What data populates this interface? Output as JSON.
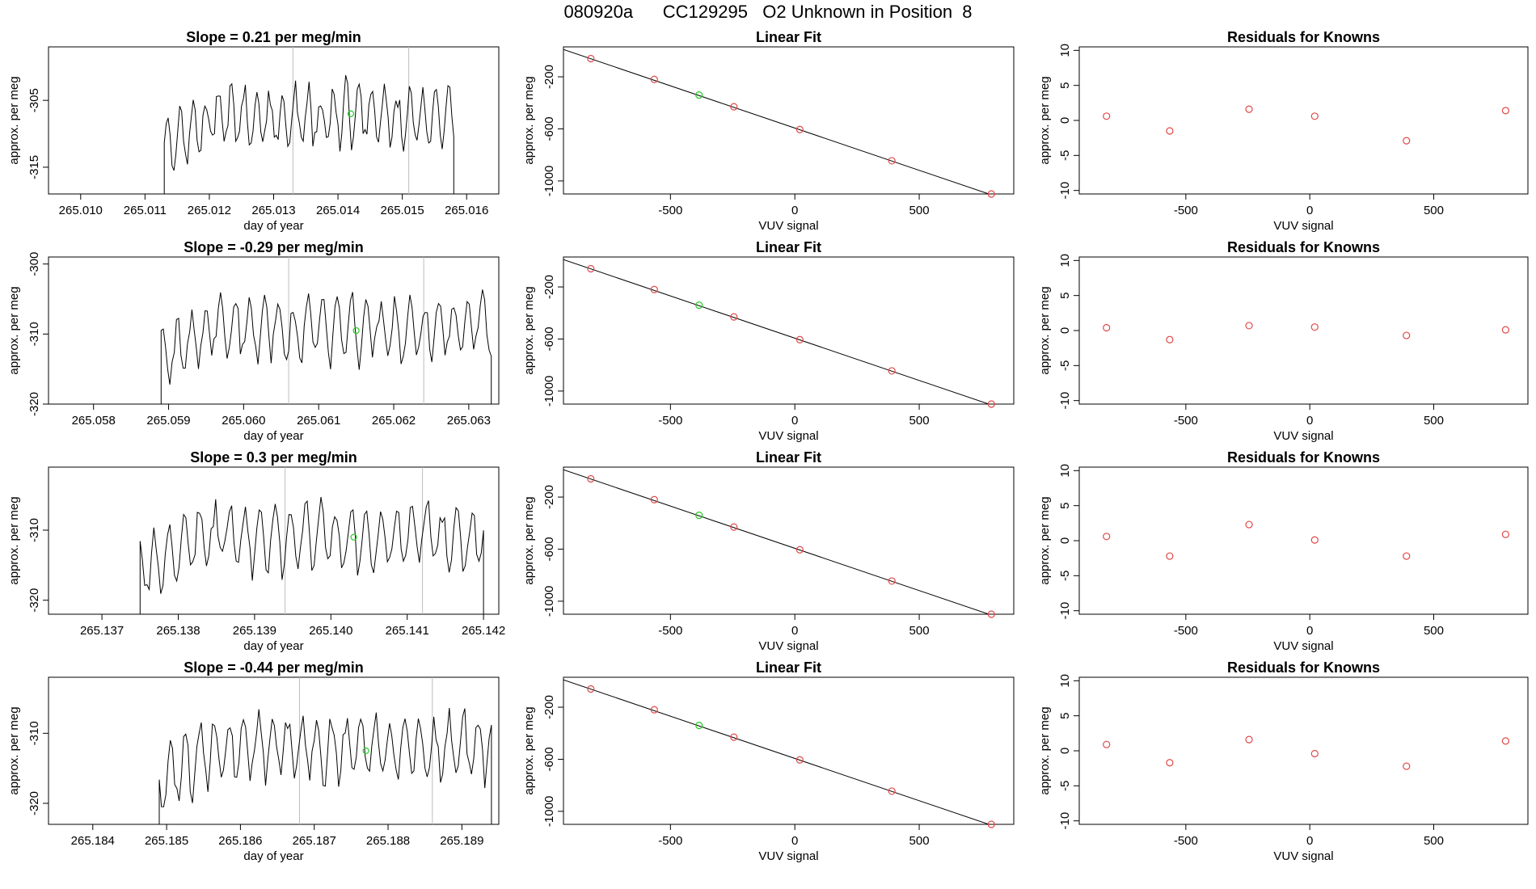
{
  "figure_title": "080920a      CC129295   O2 Unknown in Position  8",
  "chart_data": [
    {
      "row": 0,
      "type": "line",
      "title": "Slope =  0.21  per meg/min",
      "xlabel": "day of year",
      "ylabel": "approx. per meg",
      "xlim": [
        265.0095,
        265.0165
      ],
      "ylim": [
        -319,
        -297
      ],
      "xticks": [
        "265.010",
        "265.011",
        "265.012",
        "265.013",
        "265.014",
        "265.015",
        "265.016"
      ],
      "xtick_values": [
        265.01,
        265.011,
        265.012,
        265.013,
        265.014,
        265.015,
        265.016
      ],
      "yticks": [
        "-305",
        "-315"
      ],
      "ytick_values": [
        -305,
        -315
      ],
      "x_start": 265.0113,
      "x_end": 265.0158,
      "baseline": -319,
      "center": -307.5,
      "amp": 4.5,
      "vlines": [
        265.0133,
        265.0151
      ],
      "green_point": [
        265.0142,
        -307
      ]
    },
    {
      "row": 0,
      "type": "scatter",
      "title": "Linear Fit",
      "xlabel": "VUV signal",
      "ylabel": "approx. per meg",
      "xlim": [
        -930,
        880
      ],
      "ylim": [
        -1100,
        30
      ],
      "xticks": [
        "-500",
        "0",
        "500"
      ],
      "xtick_values": [
        -500,
        0,
        500
      ],
      "yticks": [
        "-200",
        "-600",
        "-1000"
      ],
      "ytick_values": [
        -200,
        -600,
        -1000
      ],
      "points": [
        [
          -820,
          -60
        ],
        [
          -565,
          -220
        ],
        [
          -245,
          -430
        ],
        [
          20,
          -605
        ],
        [
          390,
          -845
        ],
        [
          790,
          -1100
        ]
      ],
      "green_point": [
        -385,
        -340
      ],
      "fit_line": [
        [
          -930,
          10
        ],
        [
          880,
          -1165
        ]
      ]
    },
    {
      "row": 0,
      "type": "scatter",
      "title": "Residuals for Knowns",
      "xlabel": "VUV signal",
      "ylabel": "approx. per meg",
      "xlim": [
        -930,
        880
      ],
      "ylim": [
        -10.5,
        10.5
      ],
      "xticks": [
        "-500",
        "0",
        "500"
      ],
      "xtick_values": [
        -500,
        0,
        500
      ],
      "yticks": [
        "10",
        "5",
        "0",
        "-5",
        "-10"
      ],
      "ytick_values": [
        10,
        5,
        0,
        -5,
        -10
      ],
      "points": [
        [
          -820,
          0.6
        ],
        [
          -565,
          -1.5
        ],
        [
          -245,
          1.6
        ],
        [
          20,
          0.6
        ],
        [
          390,
          -2.9
        ],
        [
          790,
          1.4
        ]
      ]
    },
    {
      "row": 1,
      "type": "line",
      "title": "Slope =  -0.29  per meg/min",
      "xlabel": "day of year",
      "ylabel": "approx. per meg",
      "xlim": [
        265.0574,
        265.0634
      ],
      "ylim": [
        -320,
        -299
      ],
      "xticks": [
        "265.058",
        "265.059",
        "265.060",
        "265.061",
        "265.062",
        "265.063"
      ],
      "xtick_values": [
        265.058,
        265.059,
        265.06,
        265.061,
        265.062,
        265.063
      ],
      "yticks": [
        "-300",
        "-310",
        "-320"
      ],
      "ytick_values": [
        -300,
        -310,
        -320
      ],
      "x_start": 265.0589,
      "x_end": 265.0633,
      "baseline": -320,
      "center": -309,
      "amp": 4.5,
      "vlines": [
        265.0606,
        265.0624
      ],
      "green_point": [
        265.0615,
        -309.5
      ]
    },
    {
      "row": 1,
      "type": "scatter",
      "title": "Linear Fit",
      "xlabel": "VUV signal",
      "ylabel": "approx. per meg",
      "xlim": [
        -930,
        880
      ],
      "ylim": [
        -1100,
        30
      ],
      "xticks": [
        "-500",
        "0",
        "500"
      ],
      "xtick_values": [
        -500,
        0,
        500
      ],
      "yticks": [
        "-200",
        "-600",
        "-1000"
      ],
      "ytick_values": [
        -200,
        -600,
        -1000
      ],
      "points": [
        [
          -820,
          -60
        ],
        [
          -565,
          -220
        ],
        [
          -245,
          -430
        ],
        [
          20,
          -605
        ],
        [
          390,
          -845
        ],
        [
          790,
          -1100
        ]
      ],
      "green_point": [
        -385,
        -340
      ],
      "fit_line": [
        [
          -930,
          10
        ],
        [
          880,
          -1165
        ]
      ]
    },
    {
      "row": 1,
      "type": "scatter",
      "title": "Residuals for Knowns",
      "xlabel": "VUV signal",
      "ylabel": "approx. per meg",
      "xlim": [
        -930,
        880
      ],
      "ylim": [
        -10.5,
        10.5
      ],
      "xticks": [
        "-500",
        "0",
        "500"
      ],
      "xtick_values": [
        -500,
        0,
        500
      ],
      "yticks": [
        "10",
        "5",
        "0",
        "-5",
        "-10"
      ],
      "ytick_values": [
        10,
        5,
        0,
        -5,
        -10
      ],
      "points": [
        [
          -820,
          0.4
        ],
        [
          -565,
          -1.3
        ],
        [
          -245,
          0.7
        ],
        [
          20,
          0.5
        ],
        [
          390,
          -0.7
        ],
        [
          790,
          0.1
        ]
      ]
    },
    {
      "row": 2,
      "type": "line",
      "title": "Slope =  0.3  per meg/min",
      "xlabel": "day of year",
      "ylabel": "approx. per meg",
      "xlim": [
        265.1363,
        265.1422
      ],
      "ylim": [
        -322,
        -301
      ],
      "xticks": [
        "265.137",
        "265.138",
        "265.139",
        "265.140",
        "265.141",
        "265.142"
      ],
      "xtick_values": [
        265.137,
        265.138,
        265.139,
        265.14,
        265.141,
        265.142
      ],
      "yticks": [
        "-310",
        "-320"
      ],
      "ytick_values": [
        -310,
        -320
      ],
      "x_start": 265.1375,
      "x_end": 265.142,
      "baseline": -322,
      "center": -311,
      "amp": 4.5,
      "vlines": [
        265.1394,
        265.1412
      ],
      "green_point": [
        265.1403,
        -311
      ]
    },
    {
      "row": 2,
      "type": "scatter",
      "title": "Linear Fit",
      "xlabel": "VUV signal",
      "ylabel": "approx. per meg",
      "xlim": [
        -930,
        880
      ],
      "ylim": [
        -1100,
        30
      ],
      "xticks": [
        "-500",
        "0",
        "500"
      ],
      "xtick_values": [
        -500,
        0,
        500
      ],
      "yticks": [
        "-200",
        "-600",
        "-1000"
      ],
      "ytick_values": [
        -200,
        -600,
        -1000
      ],
      "points": [
        [
          -820,
          -60
        ],
        [
          -565,
          -220
        ],
        [
          -245,
          -430
        ],
        [
          20,
          -605
        ],
        [
          390,
          -845
        ],
        [
          790,
          -1100
        ]
      ],
      "green_point": [
        -385,
        -340
      ],
      "fit_line": [
        [
          -930,
          10
        ],
        [
          880,
          -1165
        ]
      ]
    },
    {
      "row": 2,
      "type": "scatter",
      "title": "Residuals for Knowns",
      "xlabel": "VUV signal",
      "ylabel": "approx. per meg",
      "xlim": [
        -930,
        880
      ],
      "ylim": [
        -10.5,
        10.5
      ],
      "xticks": [
        "-500",
        "0",
        "500"
      ],
      "xtick_values": [
        -500,
        0,
        500
      ],
      "yticks": [
        "10",
        "5",
        "0",
        "-5",
        "-10"
      ],
      "ytick_values": [
        10,
        5,
        0,
        -5,
        -10
      ],
      "points": [
        [
          -820,
          0.6
        ],
        [
          -565,
          -2.2
        ],
        [
          -245,
          2.3
        ],
        [
          20,
          0.1
        ],
        [
          390,
          -2.2
        ],
        [
          790,
          0.9
        ]
      ]
    },
    {
      "row": 3,
      "type": "line",
      "title": "Slope =  -0.44  per meg/min",
      "xlabel": "day of year",
      "ylabel": "approx. per meg",
      "xlim": [
        265.1834,
        265.1895
      ],
      "ylim": [
        -323,
        -302
      ],
      "xticks": [
        "265.184",
        "265.185",
        "265.186",
        "265.187",
        "265.188",
        "265.189"
      ],
      "xtick_values": [
        265.184,
        265.185,
        265.186,
        265.187,
        265.188,
        265.189
      ],
      "yticks": [
        "-310",
        "-320"
      ],
      "ytick_values": [
        -310,
        -320
      ],
      "x_start": 265.1849,
      "x_end": 265.1894,
      "baseline": -323,
      "center": -312,
      "amp": 4.5,
      "vlines": [
        265.1868,
        265.1886
      ],
      "green_point": [
        265.1877,
        -312.5
      ]
    },
    {
      "row": 3,
      "type": "scatter",
      "title": "Linear Fit",
      "xlabel": "VUV signal",
      "ylabel": "approx. per meg",
      "xlim": [
        -930,
        880
      ],
      "ylim": [
        -1100,
        30
      ],
      "xticks": [
        "-500",
        "0",
        "500"
      ],
      "xtick_values": [
        -500,
        0,
        500
      ],
      "yticks": [
        "-200",
        "-600",
        "-1000"
      ],
      "ytick_values": [
        -200,
        -600,
        -1000
      ],
      "points": [
        [
          -820,
          -60
        ],
        [
          -565,
          -220
        ],
        [
          -245,
          -430
        ],
        [
          20,
          -605
        ],
        [
          390,
          -845
        ],
        [
          790,
          -1100
        ]
      ],
      "green_point": [
        -385,
        -340
      ],
      "fit_line": [
        [
          -930,
          10
        ],
        [
          880,
          -1165
        ]
      ]
    },
    {
      "row": 3,
      "type": "scatter",
      "title": "Residuals for Knowns",
      "xlabel": "VUV signal",
      "ylabel": "approx. per meg",
      "xlim": [
        -930,
        880
      ],
      "ylim": [
        -10.5,
        10.5
      ],
      "xticks": [
        "-500",
        "0",
        "500"
      ],
      "xtick_values": [
        -500,
        0,
        500
      ],
      "yticks": [
        "10",
        "5",
        "0",
        "-5",
        "-10"
      ],
      "ytick_values": [
        10,
        5,
        0,
        -5,
        -10
      ],
      "points": [
        [
          -820,
          0.9
        ],
        [
          -565,
          -1.7
        ],
        [
          -245,
          1.6
        ],
        [
          20,
          -0.4
        ],
        [
          390,
          -2.2
        ],
        [
          790,
          1.4
        ]
      ]
    }
  ]
}
